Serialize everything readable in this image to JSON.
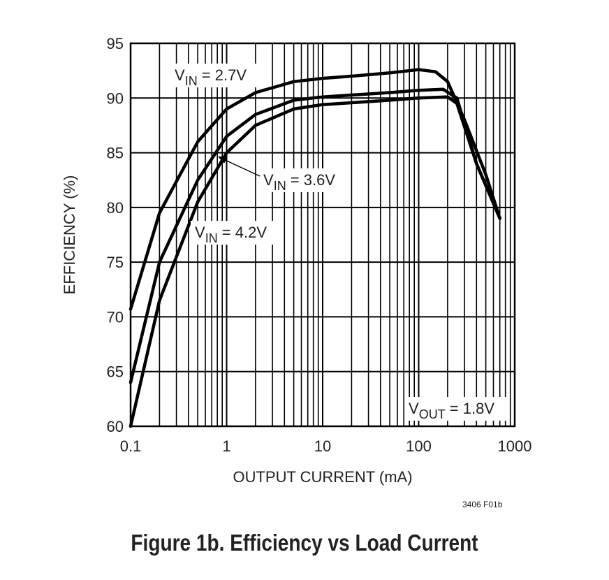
{
  "chart_data": {
    "type": "line",
    "xlabel": "OUTPUT CURRENT (mA)",
    "ylabel": "EFFICIENCY (%)",
    "x_scale": "log",
    "xlim": [
      0.1,
      1000
    ],
    "ylim": [
      60,
      95
    ],
    "x_ticks": [
      "0.1",
      "1",
      "10",
      "100",
      "1000"
    ],
    "y_ticks": [
      "60",
      "65",
      "70",
      "75",
      "80",
      "85",
      "90",
      "95"
    ],
    "grid": true,
    "annotation": {
      "main": "V",
      "sub": "OUT",
      "rest": " = 1.8V"
    },
    "series": [
      {
        "name": "VIN = 2.7V",
        "label": {
          "main": "V",
          "sub": "IN",
          "rest": " = 2.7V"
        },
        "x": [
          0.1,
          0.2,
          0.5,
          1,
          2,
          5,
          10,
          20,
          50,
          100,
          150,
          200,
          300,
          500,
          700
        ],
        "y": [
          70.7,
          79.5,
          86,
          89,
          90.5,
          91.5,
          91.8,
          92,
          92.3,
          92.6,
          92.4,
          91.5,
          88,
          83,
          79
        ]
      },
      {
        "name": "VIN = 3.6V",
        "label": {
          "main": "V",
          "sub": "IN",
          "rest": " = 3.6V"
        },
        "x": [
          0.1,
          0.2,
          0.5,
          1,
          2,
          5,
          10,
          50,
          100,
          180,
          250,
          400,
          700
        ],
        "y": [
          64,
          75,
          82.5,
          86.5,
          88.5,
          89.8,
          90.1,
          90.5,
          90.7,
          90.8,
          90,
          84,
          79
        ]
      },
      {
        "name": "VIN = 4.2V",
        "label": {
          "main": "V",
          "sub": "IN",
          "rest": " = 4.2V"
        },
        "x": [
          0.1,
          0.2,
          0.5,
          1,
          2,
          5,
          10,
          50,
          100,
          200,
          250,
          400,
          700
        ],
        "y": [
          60,
          71.5,
          80.5,
          85,
          87.5,
          89,
          89.4,
          89.8,
          90,
          90.1,
          89.5,
          84,
          79
        ]
      }
    ]
  },
  "figure_code": "3406 F01b",
  "caption": "Figure 1b. Efficiency vs Load Current"
}
